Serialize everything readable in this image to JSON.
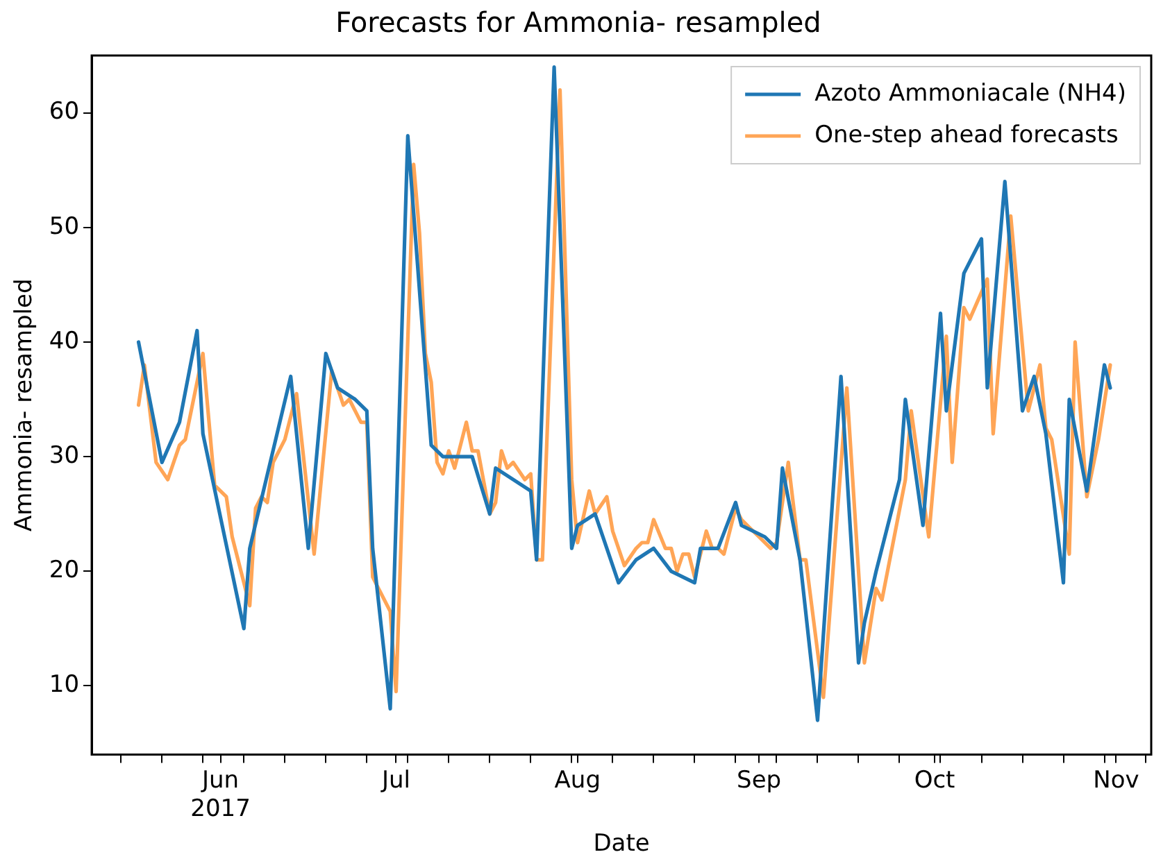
{
  "chart_data": {
    "type": "line",
    "title": "Forecasts for Ammonia- resampled",
    "xlabel": "Date",
    "ylabel": "Ammonia- resampled",
    "xlim": [
      "2017-05-10",
      "2017-11-07"
    ],
    "xticks": [
      {
        "value": "2017-05-15",
        "label": null
      },
      {
        "value": "2017-05-22",
        "label": null
      },
      {
        "value": "2017-05-29",
        "label": null
      },
      {
        "value": "2017-06-01",
        "label": "Jun\n2017"
      },
      {
        "value": "2017-06-05",
        "label": null
      },
      {
        "value": "2017-06-12",
        "label": null
      },
      {
        "value": "2017-06-19",
        "label": null
      },
      {
        "value": "2017-06-26",
        "label": null
      },
      {
        "value": "2017-07-01",
        "label": "Jul"
      },
      {
        "value": "2017-07-03",
        "label": null
      },
      {
        "value": "2017-07-10",
        "label": null
      },
      {
        "value": "2017-07-17",
        "label": null
      },
      {
        "value": "2017-07-24",
        "label": null
      },
      {
        "value": "2017-07-31",
        "label": null
      },
      {
        "value": "2017-08-01",
        "label": "Aug"
      },
      {
        "value": "2017-08-07",
        "label": null
      },
      {
        "value": "2017-08-14",
        "label": null
      },
      {
        "value": "2017-08-21",
        "label": null
      },
      {
        "value": "2017-08-28",
        "label": null
      },
      {
        "value": "2017-09-01",
        "label": "Sep"
      },
      {
        "value": "2017-09-04",
        "label": null
      },
      {
        "value": "2017-09-11",
        "label": null
      },
      {
        "value": "2017-09-18",
        "label": null
      },
      {
        "value": "2017-09-25",
        "label": null
      },
      {
        "value": "2017-10-01",
        "label": "Oct"
      },
      {
        "value": "2017-10-02",
        "label": null
      },
      {
        "value": "2017-10-09",
        "label": null
      },
      {
        "value": "2017-10-16",
        "label": null
      },
      {
        "value": "2017-10-23",
        "label": null
      },
      {
        "value": "2017-10-30",
        "label": null
      },
      {
        "value": "2017-11-01",
        "label": "Nov"
      },
      {
        "value": "2017-11-06",
        "label": null
      }
    ],
    "ylim": [
      4,
      65
    ],
    "yticks": [
      10,
      20,
      30,
      40,
      50,
      60
    ],
    "grid": false,
    "legend": "top right",
    "marker": "none",
    "line_style": "solid",
    "series": [
      {
        "name": "Azoto Ammoniacale (NH4)",
        "color": "#1f77b4",
        "x": [
          "2017-05-18",
          "2017-05-22",
          "2017-05-25",
          "2017-05-28",
          "2017-05-29",
          "2017-06-05",
          "2017-06-06",
          "2017-06-13",
          "2017-06-16",
          "2017-06-19",
          "2017-06-21",
          "2017-06-24",
          "2017-06-26",
          "2017-06-27",
          "2017-06-30",
          "2017-07-03",
          "2017-07-07",
          "2017-07-09",
          "2017-07-14",
          "2017-07-17",
          "2017-07-18",
          "2017-07-24",
          "2017-07-25",
          "2017-07-28",
          "2017-07-31",
          "2017-08-01",
          "2017-08-04",
          "2017-08-08",
          "2017-08-11",
          "2017-08-14",
          "2017-08-17",
          "2017-08-21",
          "2017-08-22",
          "2017-08-25",
          "2017-08-28",
          "2017-08-29",
          "2017-09-02",
          "2017-09-04",
          "2017-09-05",
          "2017-09-08",
          "2017-09-11",
          "2017-09-15",
          "2017-09-18",
          "2017-09-19",
          "2017-09-21",
          "2017-09-25",
          "2017-09-26",
          "2017-09-29",
          "2017-10-02",
          "2017-10-03",
          "2017-10-06",
          "2017-10-09",
          "2017-10-10",
          "2017-10-13",
          "2017-10-16",
          "2017-10-18",
          "2017-10-20",
          "2017-10-23",
          "2017-10-24",
          "2017-10-27",
          "2017-10-30",
          "2017-10-31"
        ],
        "values": [
          40,
          29.5,
          33,
          41,
          32,
          15,
          22,
          37,
          22,
          39,
          36,
          35,
          34,
          22,
          8,
          58,
          31,
          30,
          30,
          25,
          29,
          27,
          21,
          64,
          22,
          24,
          25,
          19,
          21,
          22,
          20,
          19,
          22,
          22,
          26,
          24,
          23,
          22,
          29,
          21,
          7,
          37,
          12,
          15.5,
          20,
          28,
          35,
          24,
          42.5,
          34,
          46,
          49,
          36,
          54,
          34,
          37,
          32,
          19,
          35,
          27,
          38,
          36
        ]
      },
      {
        "name": "One-step ahead forecasts",
        "color": "#ffa556",
        "x": [
          "2017-05-18",
          "2017-05-19",
          "2017-05-21",
          "2017-05-23",
          "2017-05-25",
          "2017-05-26",
          "2017-05-29",
          "2017-05-31",
          "2017-06-02",
          "2017-06-03",
          "2017-06-06",
          "2017-06-07",
          "2017-06-08",
          "2017-06-09",
          "2017-06-10",
          "2017-06-12",
          "2017-06-14",
          "2017-06-17",
          "2017-06-20",
          "2017-06-22",
          "2017-06-23",
          "2017-06-25",
          "2017-06-26",
          "2017-06-27",
          "2017-06-28",
          "2017-06-30",
          "2017-07-01",
          "2017-07-04",
          "2017-07-05",
          "2017-07-06",
          "2017-07-07",
          "2017-07-08",
          "2017-07-09",
          "2017-07-10",
          "2017-07-11",
          "2017-07-13",
          "2017-07-14",
          "2017-07-15",
          "2017-07-17",
          "2017-07-18",
          "2017-07-19",
          "2017-07-20",
          "2017-07-21",
          "2017-07-23",
          "2017-07-24",
          "2017-07-25",
          "2017-07-26",
          "2017-07-29",
          "2017-07-31",
          "2017-08-01",
          "2017-08-03",
          "2017-08-04",
          "2017-08-06",
          "2017-08-07",
          "2017-08-09",
          "2017-08-11",
          "2017-08-12",
          "2017-08-13",
          "2017-08-14",
          "2017-08-16",
          "2017-08-17",
          "2017-08-18",
          "2017-08-19",
          "2017-08-20",
          "2017-08-21",
          "2017-08-23",
          "2017-08-24",
          "2017-08-25",
          "2017-08-26",
          "2017-08-28",
          "2017-08-29",
          "2017-08-31",
          "2017-09-01",
          "2017-09-03",
          "2017-09-04",
          "2017-09-06",
          "2017-09-08",
          "2017-09-09",
          "2017-09-12",
          "2017-09-16",
          "2017-09-19",
          "2017-09-21",
          "2017-09-22",
          "2017-09-26",
          "2017-09-27",
          "2017-09-30",
          "2017-10-03",
          "2017-10-04",
          "2017-10-06",
          "2017-10-07",
          "2017-10-10",
          "2017-10-11",
          "2017-10-14",
          "2017-10-17",
          "2017-10-19",
          "2017-10-20",
          "2017-10-21",
          "2017-10-24",
          "2017-10-25",
          "2017-10-27",
          "2017-10-29",
          "2017-10-31"
        ],
        "values": [
          34.5,
          38,
          29.5,
          28,
          31,
          31.5,
          39,
          27.5,
          26.5,
          23,
          17,
          25.5,
          26.5,
          26,
          29.5,
          31.5,
          35.5,
          21.5,
          37.5,
          34.5,
          35,
          33,
          33,
          19.5,
          18.5,
          16.5,
          9.5,
          55.5,
          49.5,
          39,
          36.5,
          29.5,
          28.5,
          30.5,
          29,
          33,
          30.5,
          30.5,
          25,
          26,
          30.5,
          29,
          29.5,
          28,
          28.5,
          21,
          21,
          62,
          28,
          22.5,
          27,
          25,
          26.5,
          23.5,
          20.5,
          22,
          22.5,
          22.5,
          24.5,
          22,
          22,
          20,
          21.5,
          21.5,
          19.5,
          23.5,
          22,
          22,
          21.5,
          25.5,
          24.5,
          23.5,
          23,
          22,
          22.5,
          29.5,
          21,
          21,
          9,
          36,
          12,
          18.5,
          17.5,
          28,
          34,
          23,
          40.5,
          29.5,
          43,
          42,
          45.5,
          32,
          51,
          34,
          38,
          32.5,
          31.5,
          21.5,
          40,
          26.5,
          31.5,
          38
        ]
      }
    ]
  }
}
